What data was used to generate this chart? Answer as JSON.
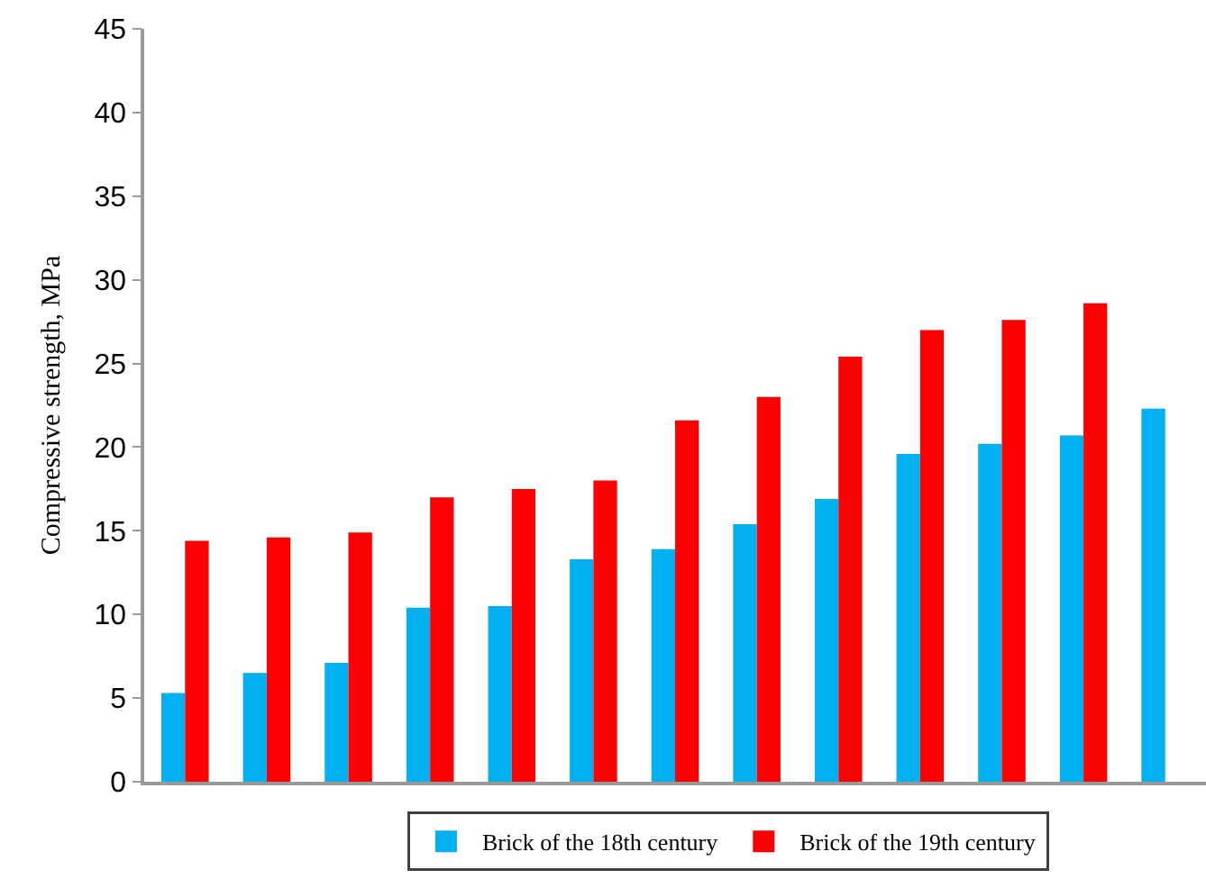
{
  "chart_data": {
    "type": "bar",
    "ylabel": "Compressive strength, MPa",
    "categories": [
      null,
      null,
      null,
      null,
      null,
      null,
      null,
      null,
      null,
      null,
      null,
      null,
      null
    ],
    "series": [
      {
        "name": "Brick of the 18th century",
        "color": "#00b0f0",
        "values": [
          5.3,
          6.5,
          7.1,
          10.4,
          10.5,
          13.3,
          13.9,
          15.4,
          16.9,
          19.6,
          20.2,
          20.7,
          22.3
        ]
      },
      {
        "name": "Brick of the 19th century",
        "color": "#ff0000",
        "values": [
          14.4,
          14.6,
          14.9,
          17.0,
          17.5,
          18.0,
          21.6,
          23.0,
          25.4,
          27.0,
          27.6,
          28.6,
          null
        ]
      }
    ],
    "ylim": [
      0,
      45
    ],
    "yticks": [
      0,
      5,
      10,
      15,
      20,
      25,
      30,
      35,
      40,
      45
    ],
    "legend": "bottom"
  }
}
